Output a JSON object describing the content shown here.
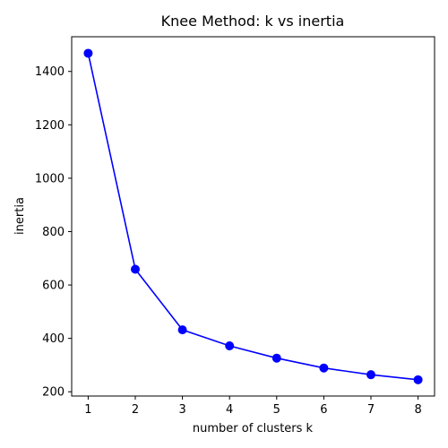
{
  "chart_data": {
    "type": "line",
    "title": "Knee Method: k vs inertia",
    "xlabel": "number of clusters k",
    "ylabel": "inertia",
    "x": [
      1,
      2,
      3,
      4,
      5,
      6,
      7,
      8
    ],
    "series": [
      {
        "values": [
          1468,
          659,
          432,
          372,
          326,
          289,
          264,
          245
        ],
        "color": "#0000ff",
        "marker": "circle"
      }
    ],
    "xlim": [
      0.65,
      8.35
    ],
    "ylim": [
      184,
      1530
    ],
    "xticks": [
      1,
      2,
      3,
      4,
      5,
      6,
      7,
      8
    ],
    "yticks": [
      200,
      400,
      600,
      800,
      1000,
      1200,
      1400
    ],
    "grid": false,
    "legend": "none"
  }
}
